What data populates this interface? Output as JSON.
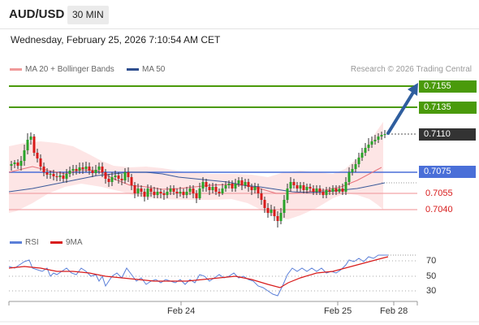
{
  "header": {
    "symbol": "AUD/USD",
    "timeframe": "30 MIN",
    "datetime": "Wednesday, February 25, 2026 7:10:54 AM CET"
  },
  "legend": {
    "ma20_label": "MA 20 + Bollinger Bands",
    "ma50_label": "MA 50",
    "credit": "Research © 2026 Trading Central"
  },
  "colors": {
    "target": "#4a9a0b",
    "pivot": "#4a6fd8",
    "support": "#e8747c",
    "current_price": "#333333",
    "arrow": "#2f5e9e",
    "bollinger": "#fde1e1",
    "ma20": "#e8747c",
    "ma50": "#3b5a9a",
    "rsi": "#5b7fd8",
    "rsi_9ma": "#d81b1b"
  },
  "levels": {
    "target2": "0.7155",
    "target1": "0.7135",
    "current": "0.7110",
    "pivot": "0.7075",
    "support1": "0.7055",
    "support2": "0.7040"
  },
  "indicator": {
    "rsi_label": "RSI",
    "ma_label": "9MA",
    "ticks": [
      "70",
      "50",
      "30"
    ]
  },
  "x_axis": {
    "labels": [
      "Feb 24",
      "Feb 25",
      "Feb 28"
    ]
  }
}
